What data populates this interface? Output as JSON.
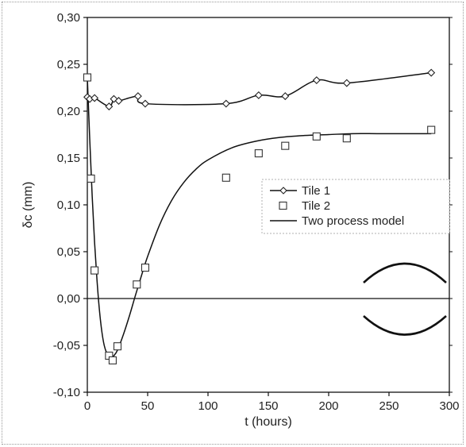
{
  "chart_data": {
    "type": "scatter",
    "title": "",
    "xlabel": "t (hours)",
    "ylabel": "δc (mm)",
    "xlim": [
      0,
      300
    ],
    "ylim": [
      -0.1,
      0.3
    ],
    "x_ticks": [
      0,
      50,
      100,
      150,
      200,
      250,
      300
    ],
    "y_ticks": [
      -0.1,
      -0.05,
      0.0,
      0.05,
      0.1,
      0.15,
      0.2,
      0.25,
      0.3
    ],
    "x_tick_labels": [
      "0",
      "50",
      "100",
      "150",
      "200",
      "250",
      "300"
    ],
    "y_tick_labels": [
      "-0,10",
      "-0,05",
      "0,00",
      "0,05",
      "0,10",
      "0,15",
      "0,20",
      "0,25",
      "0,30"
    ],
    "grid": false,
    "legend_position": "right",
    "series": [
      {
        "name": "Tile 1",
        "marker": "diamond",
        "line": "smooth",
        "x": [
          0,
          2,
          6,
          18,
          22,
          26,
          42,
          48,
          115,
          142,
          164,
          190,
          215,
          285
        ],
        "y": [
          0.215,
          0.213,
          0.214,
          0.205,
          0.213,
          0.211,
          0.216,
          0.208,
          0.208,
          0.217,
          0.216,
          0.233,
          0.23,
          0.241
        ]
      },
      {
        "name": "Tile 2",
        "marker": "square",
        "line": "none",
        "x": [
          0,
          3,
          6,
          18,
          21,
          25,
          41,
          48,
          115,
          142,
          164,
          190,
          215,
          285
        ],
        "y": [
          0.236,
          0.128,
          0.03,
          -0.061,
          -0.066,
          -0.051,
          0.015,
          0.033,
          0.129,
          0.155,
          0.163,
          0.173,
          0.171,
          0.18
        ]
      },
      {
        "name": "Two process model",
        "marker": "none",
        "line": "solid",
        "x": [
          0,
          2,
          4,
          6,
          8,
          10,
          12,
          14,
          16,
          18,
          20,
          22,
          25,
          30,
          35,
          40,
          45,
          50,
          60,
          70,
          80,
          90,
          100,
          120,
          140,
          160,
          180,
          200,
          220,
          240,
          260,
          285
        ],
        "y": [
          0.236,
          0.17,
          0.11,
          0.06,
          0.02,
          -0.012,
          -0.035,
          -0.05,
          -0.058,
          -0.062,
          -0.063,
          -0.061,
          -0.055,
          -0.038,
          -0.018,
          0.004,
          0.025,
          0.045,
          0.079,
          0.105,
          0.124,
          0.138,
          0.148,
          0.161,
          0.168,
          0.172,
          0.174,
          0.175,
          0.176,
          0.176,
          0.176,
          0.176
        ]
      }
    ]
  }
}
